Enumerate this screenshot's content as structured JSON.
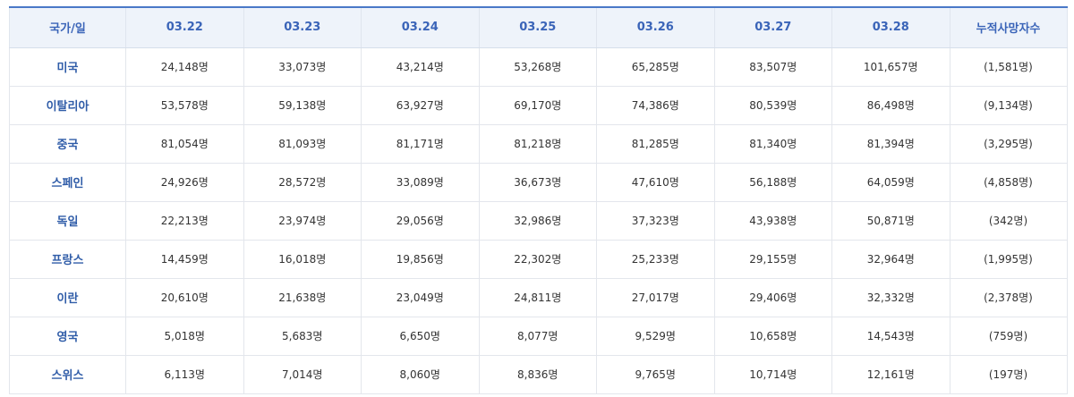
{
  "headers": [
    "국가/일",
    "03.22",
    "03.23",
    "03.24",
    "03.25",
    "03.26",
    "03.27",
    "03.28",
    "누적사망자수"
  ],
  "rows": [
    {
      "country": "미국",
      "values": [
        "24,148명",
        "33,073명",
        "43,214명",
        "53,268명",
        "65,285명",
        "83,507명",
        "101,657명"
      ],
      "deaths": "(1,581명)"
    },
    {
      "country": "이탈리아",
      "values": [
        "53,578명",
        "59,138명",
        "63,927명",
        "69,170명",
        "74,386명",
        "80,539명",
        "86,498명"
      ],
      "deaths": "(9,134명)"
    },
    {
      "country": "중국",
      "values": [
        "81,054명",
        "81,093명",
        "81,171명",
        "81,218명",
        "81,285명",
        "81,340명",
        "81,394명"
      ],
      "deaths": "(3,295명)"
    },
    {
      "country": "스페인",
      "values": [
        "24,926명",
        "28,572명",
        "33,089명",
        "36,673명",
        "47,610명",
        "56,188명",
        "64,059명"
      ],
      "deaths": "(4,858명)"
    },
    {
      "country": "독일",
      "values": [
        "22,213명",
        "23,974명",
        "29,056명",
        "32,986명",
        "37,323명",
        "43,938명",
        "50,871명"
      ],
      "deaths": "(342명)"
    },
    {
      "country": "프랑스",
      "values": [
        "14,459명",
        "16,018명",
        "19,856명",
        "22,302명",
        "25,233명",
        "29,155명",
        "32,964명"
      ],
      "deaths": "(1,995명)"
    },
    {
      "country": "이란",
      "values": [
        "20,610명",
        "21,638명",
        "23,049명",
        "24,811명",
        "27,017명",
        "29,406명",
        "32,332명"
      ],
      "deaths": "(2,378명)"
    },
    {
      "country": "영국",
      "values": [
        "5,018명",
        "5,683명",
        "6,650명",
        "8,077명",
        "9,529명",
        "10,658명",
        "14,543명"
      ],
      "deaths": "(759명)"
    },
    {
      "country": "스위스",
      "values": [
        "6,113명",
        "7,014명",
        "8,060명",
        "8,836명",
        "9,765명",
        "10,714명",
        "12,161명"
      ],
      "deaths": "(197명)"
    }
  ]
}
